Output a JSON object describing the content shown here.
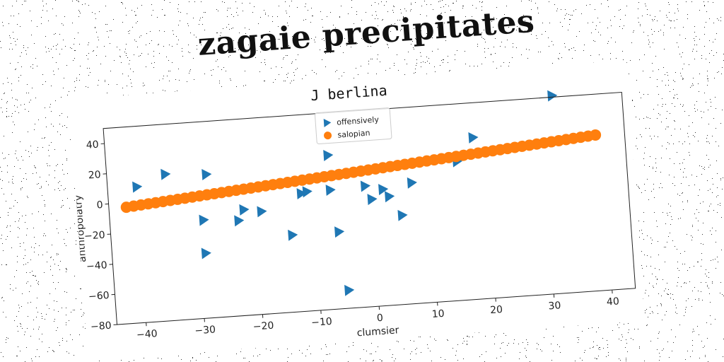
{
  "title": "zagaie precipitates",
  "chart_data": {
    "type": "scatter",
    "title": "J berlina",
    "xlabel": "clumsier",
    "ylabel": "anthropolatry",
    "xlim": [
      -45,
      44
    ],
    "ylim": [
      -80,
      50
    ],
    "xticks": [
      -40,
      -30,
      -20,
      -10,
      0,
      10,
      20,
      30,
      40
    ],
    "yticks": [
      -80,
      -60,
      -40,
      -20,
      0,
      20,
      40
    ],
    "grid": false,
    "legend_position": "upper-center",
    "series": [
      {
        "name": "offensively",
        "marker": "triangle-right",
        "color": "#1f77b4",
        "points": [
          [
            -40,
            10
          ],
          [
            -35,
            17
          ],
          [
            -28,
            15
          ],
          [
            -29,
            -15
          ],
          [
            -29,
            -37
          ],
          [
            -23,
            -17
          ],
          [
            -22,
            -10
          ],
          [
            -19,
            -12
          ],
          [
            -14,
            -29
          ],
          [
            -12,
            -2
          ],
          [
            -11,
            -1
          ],
          [
            -7,
            22
          ],
          [
            -7,
            -1
          ],
          [
            -6,
            -29
          ],
          [
            -5,
            -68
          ],
          [
            -1,
            0
          ],
          [
            0,
            -9
          ],
          [
            2,
            -3
          ],
          [
            3,
            -8
          ],
          [
            5,
            -21
          ],
          [
            7,
            0
          ],
          [
            15,
            12
          ],
          [
            18,
            27
          ],
          [
            32,
            51
          ]
        ]
      },
      {
        "name": "salopian",
        "marker": "circle",
        "color": "#ff7f0e",
        "x_start": -42,
        "x_end": 39,
        "y_start": -3,
        "y_end": 23,
        "n_points": 65
      }
    ]
  }
}
